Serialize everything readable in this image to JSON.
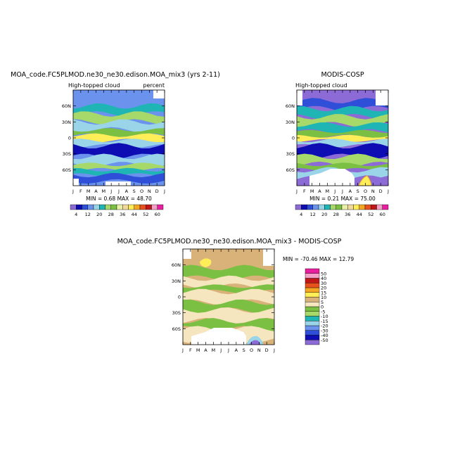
{
  "chart_data": [
    {
      "type": "heatmap",
      "title": "MOA_code.FC5PLMOD.ne30_ne30.edison.MOA_mix3 (yrs 2-11)",
      "left_label": "High-topped cloud",
      "right_label": "percent",
      "stats": "MIN =   0.68  MAX =  48.70",
      "x_ticks": [
        "J",
        "F",
        "M",
        "A",
        "M",
        "J",
        "J",
        "A",
        "S",
        "O",
        "N",
        "D",
        "J"
      ],
      "y_ticks": [
        "60N",
        "30N",
        "0",
        "30S",
        "60S"
      ],
      "y_tick_values": [
        60,
        30,
        0,
        -30,
        -60
      ],
      "ylim": [
        -90,
        90
      ],
      "colorbar_labels": [
        "4",
        "12",
        "20",
        "28",
        "36",
        "44",
        "52",
        "60"
      ],
      "colorbar_levels": [
        4,
        8,
        12,
        16,
        20,
        24,
        28,
        32,
        36,
        40,
        44,
        48,
        52,
        56,
        60
      ],
      "colors": [
        "#8c6bd6",
        "#0d0db3",
        "#2f4fd9",
        "#6b93ee",
        "#9ad4e8",
        "#1fb5b5",
        "#a6d96a",
        "#7bc043",
        "#e8f0a8",
        "#f2d9a0",
        "#ffee58",
        "#f5a623",
        "#e8501e",
        "#c01818",
        "#f5a0c8",
        "#e820a0"
      ],
      "bands": [
        {
          "lat": [
            60,
            75
          ],
          "level": 3
        },
        {
          "lat": [
            45,
            60
          ],
          "level": 5
        },
        {
          "lat": [
            30,
            45
          ],
          "level": 6
        },
        {
          "lat": [
            15,
            30
          ],
          "level": 4
        },
        {
          "lat": [
            5,
            15
          ],
          "level": 7
        },
        {
          "lat": [
            -5,
            5
          ],
          "level": 10
        },
        {
          "lat": [
            -15,
            -5
          ],
          "level": 4
        },
        {
          "lat": [
            -35,
            -15
          ],
          "level": 1
        },
        {
          "lat": [
            -50,
            -35
          ],
          "level": 4
        },
        {
          "lat": [
            -60,
            -50
          ],
          "level": 6
        },
        {
          "lat": [
            -70,
            -60
          ],
          "level": 5
        },
        {
          "lat": [
            -82,
            -70
          ],
          "level": 2
        }
      ]
    },
    {
      "type": "heatmap",
      "title": "MODIS-COSP",
      "left_label": "High-topped cloud",
      "right_label": "",
      "stats": "MIN =   0.21  MAX =  75.00",
      "x_ticks": [
        "J",
        "F",
        "M",
        "A",
        "M",
        "J",
        "J",
        "A",
        "S",
        "O",
        "N",
        "D",
        "J"
      ],
      "y_ticks": [
        "60N",
        "30N",
        "0",
        "30S",
        "60S"
      ],
      "y_tick_values": [
        60,
        30,
        0,
        -30,
        -60
      ],
      "ylim": [
        -90,
        90
      ],
      "colorbar_labels": [
        "4",
        "12",
        "20",
        "28",
        "36",
        "44",
        "52",
        "60"
      ],
      "colorbar_levels": [
        4,
        8,
        12,
        16,
        20,
        24,
        28,
        32,
        36,
        40,
        44,
        48,
        52,
        56,
        60
      ],
      "colors": [
        "#8c6bd6",
        "#0d0db3",
        "#2f4fd9",
        "#6b93ee",
        "#9ad4e8",
        "#1fb5b5",
        "#a6d96a",
        "#7bc043",
        "#e8f0a8",
        "#f2d9a0",
        "#ffee58",
        "#f5a623",
        "#e8501e",
        "#c01818",
        "#f5a0c8",
        "#e820a0"
      ],
      "bands": [
        {
          "lat": [
            70,
            82
          ],
          "level": 0
        },
        {
          "lat": [
            55,
            70
          ],
          "level": 2
        },
        {
          "lat": [
            40,
            55
          ],
          "level": 5
        },
        {
          "lat": [
            25,
            40
          ],
          "level": 6
        },
        {
          "lat": [
            12,
            25
          ],
          "level": 5
        },
        {
          "lat": [
            3,
            12
          ],
          "level": 7
        },
        {
          "lat": [
            -5,
            3
          ],
          "level": 10
        },
        {
          "lat": [
            -15,
            -5
          ],
          "level": 4
        },
        {
          "lat": [
            -35,
            -15
          ],
          "level": 1
        },
        {
          "lat": [
            -50,
            -35
          ],
          "level": 6
        },
        {
          "lat": [
            -60,
            -50
          ],
          "level": 7
        },
        {
          "lat": [
            -75,
            -60
          ],
          "level": 4
        },
        {
          "lat": [
            -88,
            -75
          ],
          "level": 0
        }
      ]
    },
    {
      "type": "heatmap",
      "title": "MOA_code.FC5PLMOD.ne30_ne30.edison.MOA_mix3 - MODIS-COSP",
      "left_label": "",
      "right_label": "",
      "stats": "MIN = -70.46  MAX =  12.79",
      "x_ticks": [
        "J",
        "F",
        "M",
        "A",
        "M",
        "J",
        "J",
        "A",
        "S",
        "O",
        "N",
        "D",
        "J"
      ],
      "y_ticks": [
        "60N",
        "30N",
        "0",
        "30S",
        "60S"
      ],
      "y_tick_values": [
        60,
        30,
        0,
        -30,
        -60
      ],
      "ylim": [
        -90,
        90
      ],
      "colorbar_labels": [
        "50",
        "40",
        "30",
        "20",
        "15",
        "10",
        "5",
        "0",
        "-5",
        "-10",
        "-15",
        "-20",
        "-30",
        "-40",
        "-50"
      ],
      "colorbar_levels": [
        -50,
        -40,
        -30,
        -20,
        -15,
        -10,
        -5,
        0,
        5,
        10,
        15,
        20,
        30,
        40,
        50
      ],
      "colors": [
        "#8c6bd6",
        "#0d0db3",
        "#2f4fd9",
        "#6b93ee",
        "#9ad4e8",
        "#1fb5b5",
        "#a6d96a",
        "#7bc043",
        "#f5e6c0",
        "#d9b27a",
        "#ffee58",
        "#f5a623",
        "#e8501e",
        "#c01818",
        "#f5a0c8",
        "#e820a0"
      ],
      "bands": [
        {
          "lat": [
            55,
            82
          ],
          "level": 9
        },
        {
          "lat": [
            35,
            55
          ],
          "level": 7
        },
        {
          "lat": [
            20,
            35
          ],
          "level": 8
        },
        {
          "lat": [
            10,
            20
          ],
          "level": 7
        },
        {
          "lat": [
            -10,
            10
          ],
          "level": 8
        },
        {
          "lat": [
            -25,
            -10
          ],
          "level": 7
        },
        {
          "lat": [
            -45,
            -25
          ],
          "level": 8
        },
        {
          "lat": [
            -60,
            -45
          ],
          "level": 7
        },
        {
          "lat": [
            -82,
            -60
          ],
          "level": 8
        }
      ]
    }
  ]
}
